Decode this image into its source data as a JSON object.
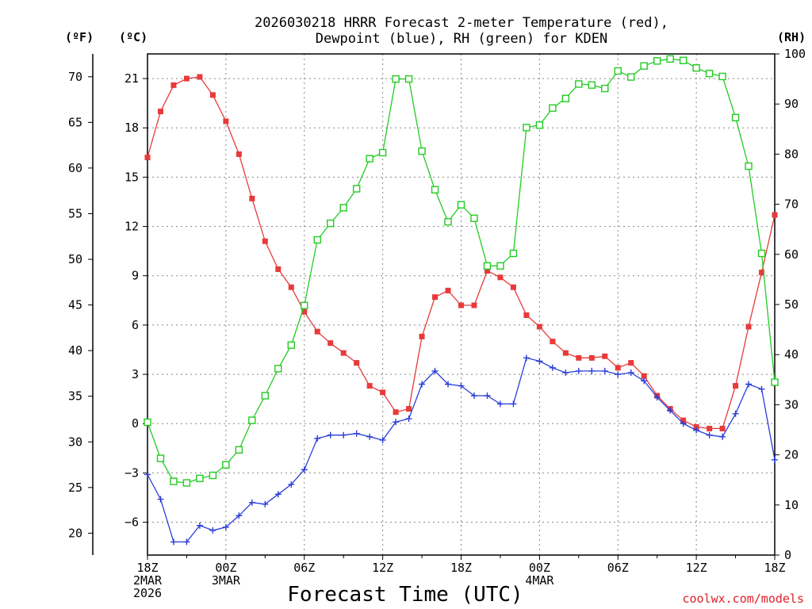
{
  "chart_data": {
    "type": "line",
    "title_line1": "2026030218 HRRR Forecast 2-meter Temperature (red),",
    "title_line2": "Dewpoint (blue), RH (green) for KDEN",
    "units": {
      "fahrenheit": "(ºF)",
      "celsius": "(ºC)",
      "rh": "(RH)"
    },
    "xlabel": "Forecast Time (UTC)",
    "credit": "coolwx.com/models",
    "colors": {
      "temperature": "#e83a3a",
      "dewpoint": "#2a3ed8",
      "rh": "#22cc22",
      "credit": "#e0202a"
    },
    "x_range": [
      0,
      48
    ],
    "celsius_range": [
      -8,
      22.5
    ],
    "rh_range": [
      0,
      100
    ],
    "x_ticks": [
      {
        "x": 0,
        "lines": [
          "18Z",
          "2MAR",
          "2026"
        ]
      },
      {
        "x": 6,
        "lines": [
          "00Z",
          "3MAR"
        ]
      },
      {
        "x": 12,
        "lines": [
          "06Z"
        ]
      },
      {
        "x": 18,
        "lines": [
          "12Z"
        ]
      },
      {
        "x": 24,
        "lines": [
          "18Z"
        ]
      },
      {
        "x": 30,
        "lines": [
          "00Z",
          "4MAR"
        ]
      },
      {
        "x": 36,
        "lines": [
          "06Z"
        ]
      },
      {
        "x": 42,
        "lines": [
          "12Z"
        ]
      },
      {
        "x": 48,
        "lines": [
          "18Z"
        ]
      }
    ],
    "celsius_ticks": [
      {
        "value": -6,
        "label": "−6"
      },
      {
        "value": -3,
        "label": "−3"
      },
      {
        "value": 0,
        "label": "0"
      },
      {
        "value": 3,
        "label": "3"
      },
      {
        "value": 6,
        "label": "6"
      },
      {
        "value": 9,
        "label": "9"
      },
      {
        "value": 12,
        "label": "12"
      },
      {
        "value": 15,
        "label": "15"
      },
      {
        "value": 18,
        "label": "18"
      },
      {
        "value": 21,
        "label": "21"
      }
    ],
    "fahrenheit_ticks": [
      "20",
      "25",
      "30",
      "35",
      "40",
      "45",
      "50",
      "55",
      "60",
      "65",
      "70"
    ],
    "rh_ticks": [
      "0",
      "10",
      "20",
      "30",
      "40",
      "50",
      "60",
      "70",
      "80",
      "90",
      "100"
    ],
    "series": [
      {
        "name": "Temperature",
        "units": "C",
        "marker": "filled-square",
        "values": [
          16.2,
          19.0,
          20.6,
          21.0,
          21.1,
          20.0,
          18.4,
          16.4,
          13.7,
          11.1,
          9.4,
          8.3,
          6.8,
          5.6,
          4.9,
          4.3,
          3.7,
          2.3,
          1.9,
          0.7,
          0.9,
          5.3,
          7.7,
          8.1,
          7.2,
          7.2,
          9.3,
          8.9,
          8.3,
          6.6,
          5.9,
          5.0,
          4.3,
          4.0,
          4.0,
          4.1,
          3.4,
          3.7,
          2.9,
          1.7,
          0.9,
          0.2,
          -0.2,
          -0.3,
          -0.3,
          2.3,
          5.9,
          9.2,
          12.7
        ]
      },
      {
        "name": "Dewpoint",
        "units": "C",
        "marker": "plus",
        "values": [
          -3.1,
          -4.6,
          -7.2,
          -7.2,
          -6.2,
          -6.5,
          -6.3,
          -5.6,
          -4.8,
          -4.9,
          -4.3,
          -3.7,
          -2.8,
          -0.9,
          -0.7,
          -0.7,
          -0.6,
          -0.8,
          -1.0,
          0.1,
          0.3,
          2.4,
          3.2,
          2.4,
          2.3,
          1.7,
          1.7,
          1.2,
          1.2,
          4.0,
          3.8,
          3.4,
          3.1,
          3.2,
          3.2,
          3.2,
          3.0,
          3.1,
          2.6,
          1.6,
          0.8,
          0.0,
          -0.4,
          -0.7,
          -0.8,
          0.6,
          2.4,
          2.1,
          -2.2
        ]
      },
      {
        "name": "RH",
        "units": "percent",
        "marker": "open-square",
        "values": [
          26.5,
          19.3,
          14.7,
          14.4,
          15.3,
          15.9,
          18.0,
          21.0,
          26.9,
          31.8,
          37.2,
          41.9,
          49.8,
          62.9,
          66.2,
          69.3,
          73.1,
          79.1,
          80.3,
          95.0,
          95.0,
          80.6,
          72.9,
          66.5,
          69.9,
          67.2,
          57.7,
          57.7,
          60.2,
          85.3,
          85.8,
          89.2,
          91.1,
          94.0,
          93.8,
          93.1,
          96.6,
          95.4,
          97.6,
          98.6,
          99.0,
          98.7,
          97.2,
          96.1,
          95.5,
          87.3,
          77.6,
          60.2,
          34.5
        ]
      }
    ]
  }
}
